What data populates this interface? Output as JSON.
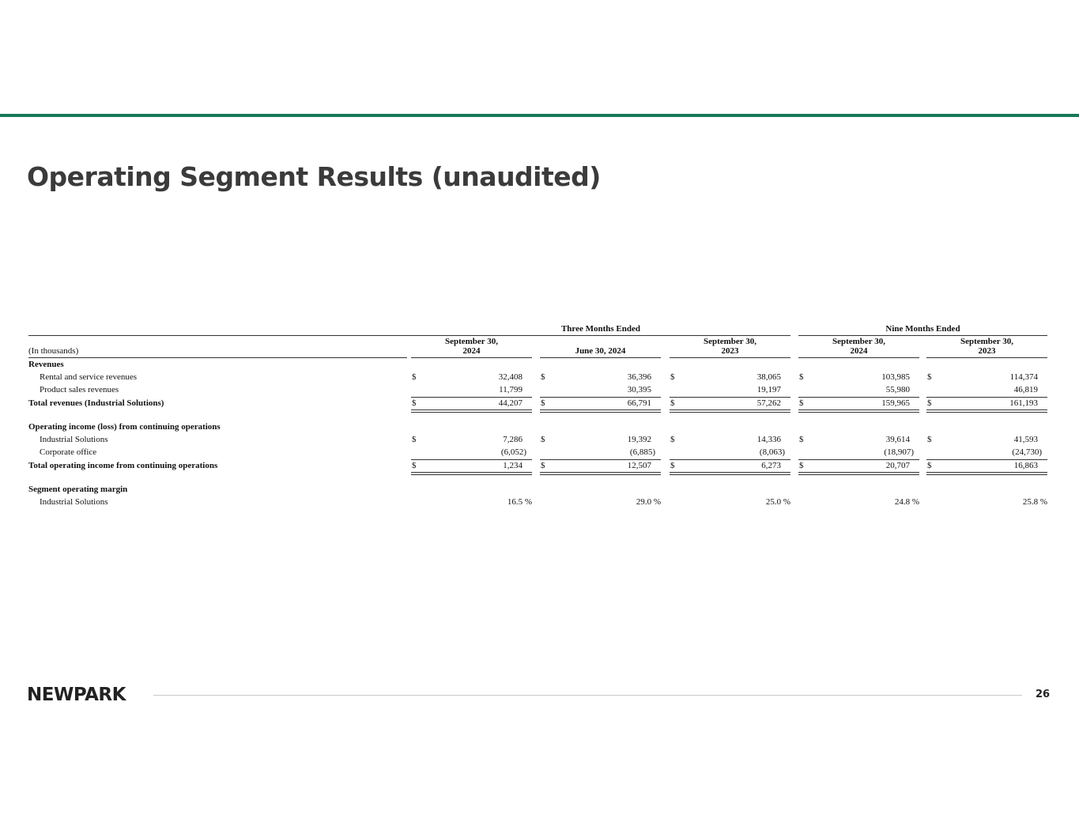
{
  "header": {
    "title": "Operating Segment Results (unaudited)"
  },
  "table": {
    "group_headers": [
      "Three Months Ended",
      "Nine Months Ended"
    ],
    "unit_label": "(In thousands)",
    "currency": "$",
    "columns": [
      [
        "September 30,",
        "2024"
      ],
      [
        "June 30, 2024"
      ],
      [
        "September 30,",
        "2023"
      ],
      [
        "September 30,",
        "2024"
      ],
      [
        "September 30,",
        "2023"
      ]
    ],
    "sections": [
      {
        "heading": "Revenues",
        "rows": [
          {
            "label": "Rental and service revenues",
            "values": [
              "32,408",
              "36,396",
              "38,065",
              "103,985",
              "114,374"
            ]
          },
          {
            "label": "Product sales revenues",
            "values": [
              "11,799",
              "30,395",
              "19,197",
              "55,980",
              "46,819"
            ]
          }
        ],
        "total": {
          "label": "Total revenues (Industrial Solutions)",
          "values": [
            "44,207",
            "66,791",
            "57,262",
            "159,965",
            "161,193"
          ]
        }
      },
      {
        "heading": "Operating income (loss) from continuing operations",
        "rows": [
          {
            "label": "Industrial Solutions",
            "values": [
              "7,286",
              "19,392",
              "14,336",
              "39,614",
              "41,593"
            ]
          },
          {
            "label": "Corporate office",
            "values": [
              "(6,052)",
              "(6,885)",
              "(8,063)",
              "(18,907)",
              "(24,730)"
            ]
          }
        ],
        "total": {
          "label": "Total operating income from continuing operations",
          "values": [
            "1,234",
            "12,507",
            "6,273",
            "20,707",
            "16,863"
          ]
        }
      },
      {
        "heading": "Segment operating margin",
        "rows": [
          {
            "label": "Industrial Solutions",
            "values": [
              "16.5 %",
              "29.0 %",
              "25.0 %",
              "24.8 %",
              "25.8 %"
            ]
          }
        ]
      }
    ]
  },
  "footer": {
    "logo": "NEWPARK",
    "page_number": "26"
  }
}
